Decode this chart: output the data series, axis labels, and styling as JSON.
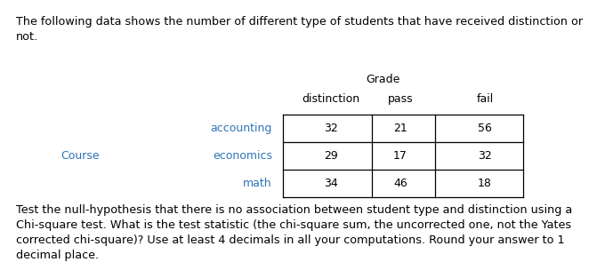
{
  "intro_text": "The following data shows the number of different type of students that have received distinction or\nnot.",
  "grade_label": "Grade",
  "course_label": "Course",
  "col_headers": [
    "distinction",
    "pass",
    "fail"
  ],
  "row_headers": [
    "accounting",
    "economics",
    "math"
  ],
  "table_data": [
    [
      32,
      21,
      56
    ],
    [
      29,
      17,
      32
    ],
    [
      34,
      46,
      18
    ]
  ],
  "footer_text": "Test the null-hypothesis that there is no association between student type and distinction using a\nChi-square test. What is the test statistic (the chi-square sum, the uncorrected one, not the Yates\ncorrected chi-square)? Use at least 4 decimals in all your computations. Round your answer to 1\ndecimal place.",
  "text_color": "#000000",
  "header_color": "#2e74b5",
  "bg_color": "#ffffff",
  "font_size": 9.0,
  "header_font_size": 9.0,
  "intro_font_size": 9.2,
  "footer_font_size": 9.2
}
